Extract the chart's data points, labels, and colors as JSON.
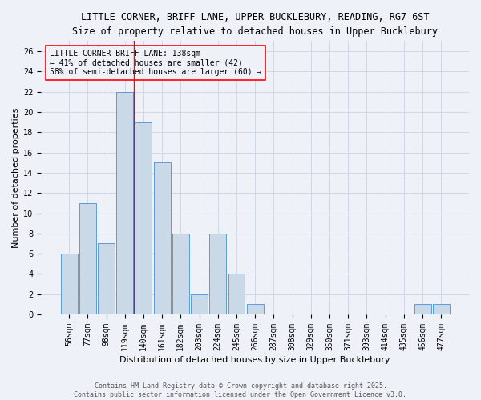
{
  "title_line1": "LITTLE CORNER, BRIFF LANE, UPPER BUCKLEBURY, READING, RG7 6ST",
  "title_line2": "Size of property relative to detached houses in Upper Bucklebury",
  "xlabel": "Distribution of detached houses by size in Upper Bucklebury",
  "ylabel": "Number of detached properties",
  "categories": [
    "56sqm",
    "77sqm",
    "98sqm",
    "119sqm",
    "140sqm",
    "161sqm",
    "182sqm",
    "203sqm",
    "224sqm",
    "245sqm",
    "266sqm",
    "287sqm",
    "308sqm",
    "329sqm",
    "350sqm",
    "371sqm",
    "393sqm",
    "414sqm",
    "435sqm",
    "456sqm",
    "477sqm"
  ],
  "values": [
    6,
    11,
    7,
    22,
    19,
    15,
    8,
    2,
    8,
    4,
    1,
    0,
    0,
    0,
    0,
    0,
    0,
    0,
    0,
    1,
    1
  ],
  "bar_color": "#c9d9e8",
  "bar_edge_color": "#5b9bd5",
  "grid_color": "#d0d8e8",
  "background_color": "#eef2f8",
  "vline_color": "red",
  "vline_x_index": 4,
  "annotation_box_text": "LITTLE CORNER BRIFF LANE: 138sqm\n← 41% of detached houses are smaller (42)\n58% of semi-detached houses are larger (60) →",
  "annotation_fontsize": 7,
  "footer_line1": "Contains HM Land Registry data © Crown copyright and database right 2025.",
  "footer_line2": "Contains public sector information licensed under the Open Government Licence v3.0.",
  "ylim": [
    0,
    27
  ],
  "yticks": [
    0,
    2,
    4,
    6,
    8,
    10,
    12,
    14,
    16,
    18,
    20,
    22,
    24,
    26
  ],
  "title_fontsize": 8.5,
  "subtitle_fontsize": 8,
  "ylabel_fontsize": 8,
  "xlabel_fontsize": 8,
  "tick_fontsize": 7,
  "footer_fontsize": 6
}
